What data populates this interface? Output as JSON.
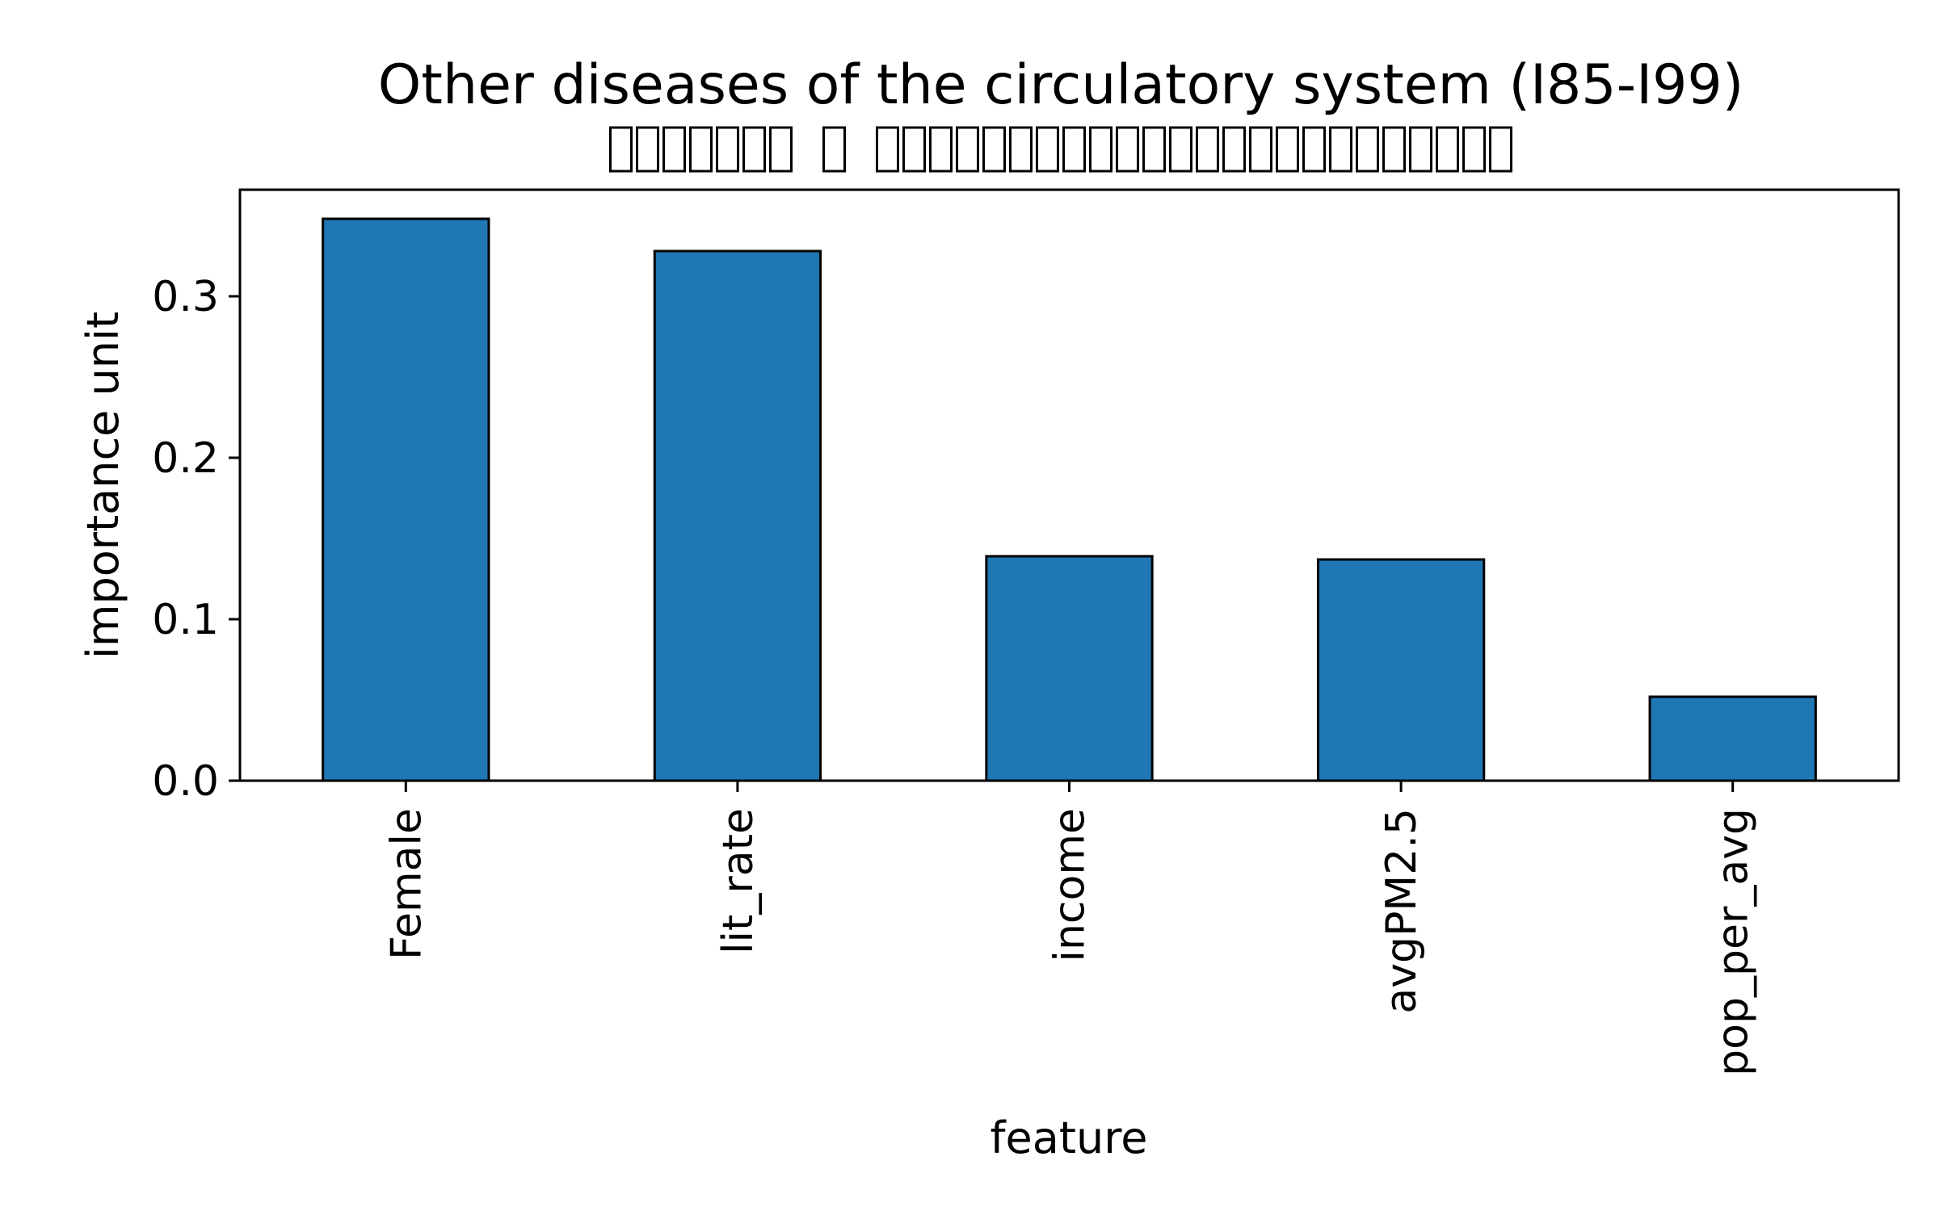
{
  "chart_data": {
    "type": "bar",
    "title": "Other diseases of the circulatory system (I85-I99)",
    "subtitle_glyph_groups": [
      7,
      1,
      24
    ],
    "xlabel": "feature",
    "ylabel": "importance unit",
    "categories": [
      "Female",
      "lit_rate",
      "income",
      "avgPM2.5",
      "pop_per_avg"
    ],
    "values": [
      0.348,
      0.328,
      0.139,
      0.137,
      0.052
    ],
    "ylim": [
      0,
      0.366
    ],
    "yticks": [
      0.0,
      0.1,
      0.2,
      0.3
    ],
    "ytick_labels": [
      "0.0",
      "0.1",
      "0.2",
      "0.3"
    ],
    "bar_color": "#1f77b4",
    "bar_edge_color": "#000000",
    "grid": false,
    "legend": "none"
  }
}
